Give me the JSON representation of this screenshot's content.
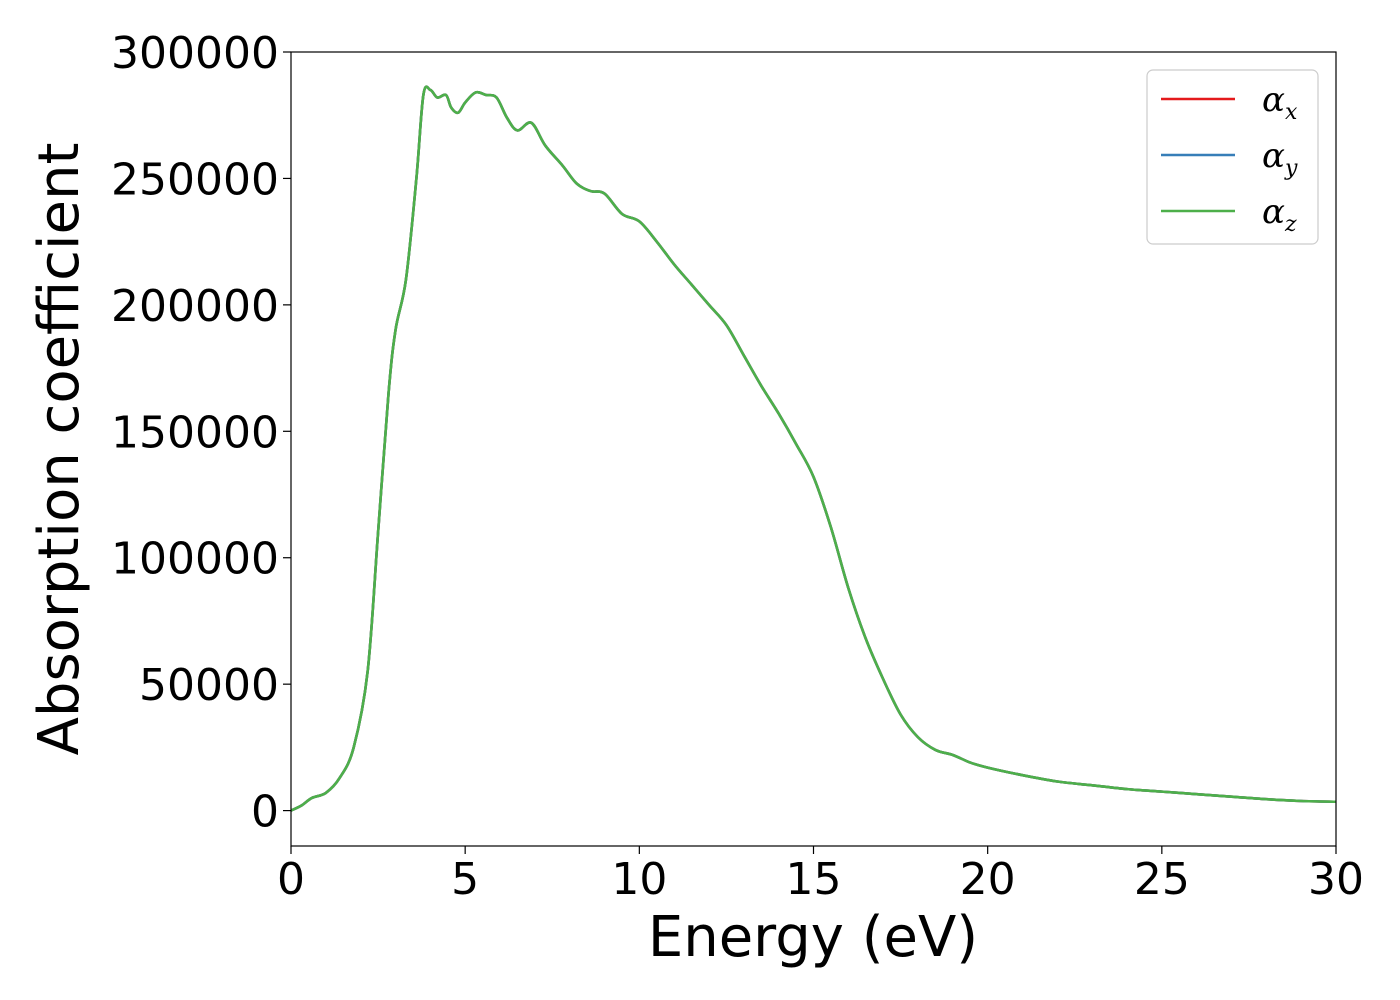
{
  "chart_data": {
    "type": "line",
    "title": "",
    "xlabel": "Energy (eV)",
    "ylabel": "Absorption coefficient",
    "xlim": [
      0,
      30
    ],
    "ylim": [
      -14000,
      300000
    ],
    "xticks": [
      0,
      5,
      10,
      15,
      20,
      25,
      30
    ],
    "yticks": [
      0,
      50000,
      100000,
      150000,
      200000,
      250000,
      300000
    ],
    "xtick_labels": [
      "0",
      "5",
      "10",
      "15",
      "20",
      "25",
      "30"
    ],
    "ytick_labels": [
      "0",
      "50000",
      "100000",
      "150000",
      "200000",
      "250000",
      "300000"
    ],
    "grid": false,
    "legend_position": "top-right",
    "x": [
      0,
      0.3,
      0.6,
      1.0,
      1.4,
      1.8,
      2.2,
      2.5,
      2.8,
      3.0,
      3.3,
      3.6,
      3.8,
      4.0,
      4.2,
      4.45,
      4.6,
      4.8,
      5.0,
      5.3,
      5.6,
      5.9,
      6.2,
      6.5,
      6.9,
      7.3,
      7.8,
      8.2,
      8.6,
      9.0,
      9.5,
      10.0,
      10.5,
      11.0,
      11.5,
      12.0,
      12.5,
      13.0,
      13.5,
      14.0,
      14.5,
      15.0,
      15.5,
      16.0,
      16.5,
      17.0,
      17.5,
      18.0,
      18.5,
      19.0,
      19.5,
      20.0,
      21.0,
      22.0,
      23.0,
      24.0,
      25.0,
      26.0,
      27.0,
      28.0,
      29.0,
      30.0
    ],
    "series": [
      {
        "name": "α_x",
        "label_base": "α",
        "label_sub": "x",
        "color": "#e41a1c",
        "values": [
          0,
          2000,
          5000,
          7000,
          13000,
          25000,
          55000,
          110000,
          165000,
          190000,
          210000,
          250000,
          283000,
          285000,
          282000,
          283000,
          278000,
          276000,
          280000,
          284000,
          283000,
          282000,
          274000,
          269000,
          272000,
          263000,
          255000,
          248000,
          245000,
          244000,
          236000,
          233000,
          225000,
          216000,
          208000,
          200000,
          192000,
          180000,
          168000,
          157000,
          145000,
          132000,
          112000,
          88000,
          68000,
          52000,
          38000,
          29000,
          24000,
          22000,
          19000,
          17000,
          14000,
          11500,
          10000,
          8500,
          7500,
          6500,
          5500,
          4500,
          3800,
          3500
        ]
      },
      {
        "name": "α_y",
        "label_base": "α",
        "label_sub": "y",
        "color": "#377eb8",
        "values": [
          0,
          2000,
          5000,
          7000,
          13000,
          25000,
          55000,
          110000,
          165000,
          190000,
          210000,
          250000,
          283000,
          285000,
          282000,
          283000,
          278000,
          276000,
          280000,
          284000,
          283000,
          282000,
          274000,
          269000,
          272000,
          263000,
          255000,
          248000,
          245000,
          244000,
          236000,
          233000,
          225000,
          216000,
          208000,
          200000,
          192000,
          180000,
          168000,
          157000,
          145000,
          132000,
          112000,
          88000,
          68000,
          52000,
          38000,
          29000,
          24000,
          22000,
          19000,
          17000,
          14000,
          11500,
          10000,
          8500,
          7500,
          6500,
          5500,
          4500,
          3800,
          3500
        ]
      },
      {
        "name": "α_z",
        "label_base": "α",
        "label_sub": "z",
        "color": "#4daf4a",
        "values": [
          0,
          2000,
          5000,
          7000,
          13000,
          25000,
          55000,
          110000,
          165000,
          190000,
          210000,
          250000,
          283000,
          285000,
          282000,
          283000,
          278000,
          276000,
          280000,
          284000,
          283000,
          282000,
          274000,
          269000,
          272000,
          263000,
          255000,
          248000,
          245000,
          244000,
          236000,
          233000,
          225000,
          216000,
          208000,
          200000,
          192000,
          180000,
          168000,
          157000,
          145000,
          132000,
          112000,
          88000,
          68000,
          52000,
          38000,
          29000,
          24000,
          22000,
          19000,
          17000,
          14000,
          11500,
          10000,
          8500,
          7500,
          6500,
          5500,
          4500,
          3800,
          3500
        ]
      }
    ]
  }
}
